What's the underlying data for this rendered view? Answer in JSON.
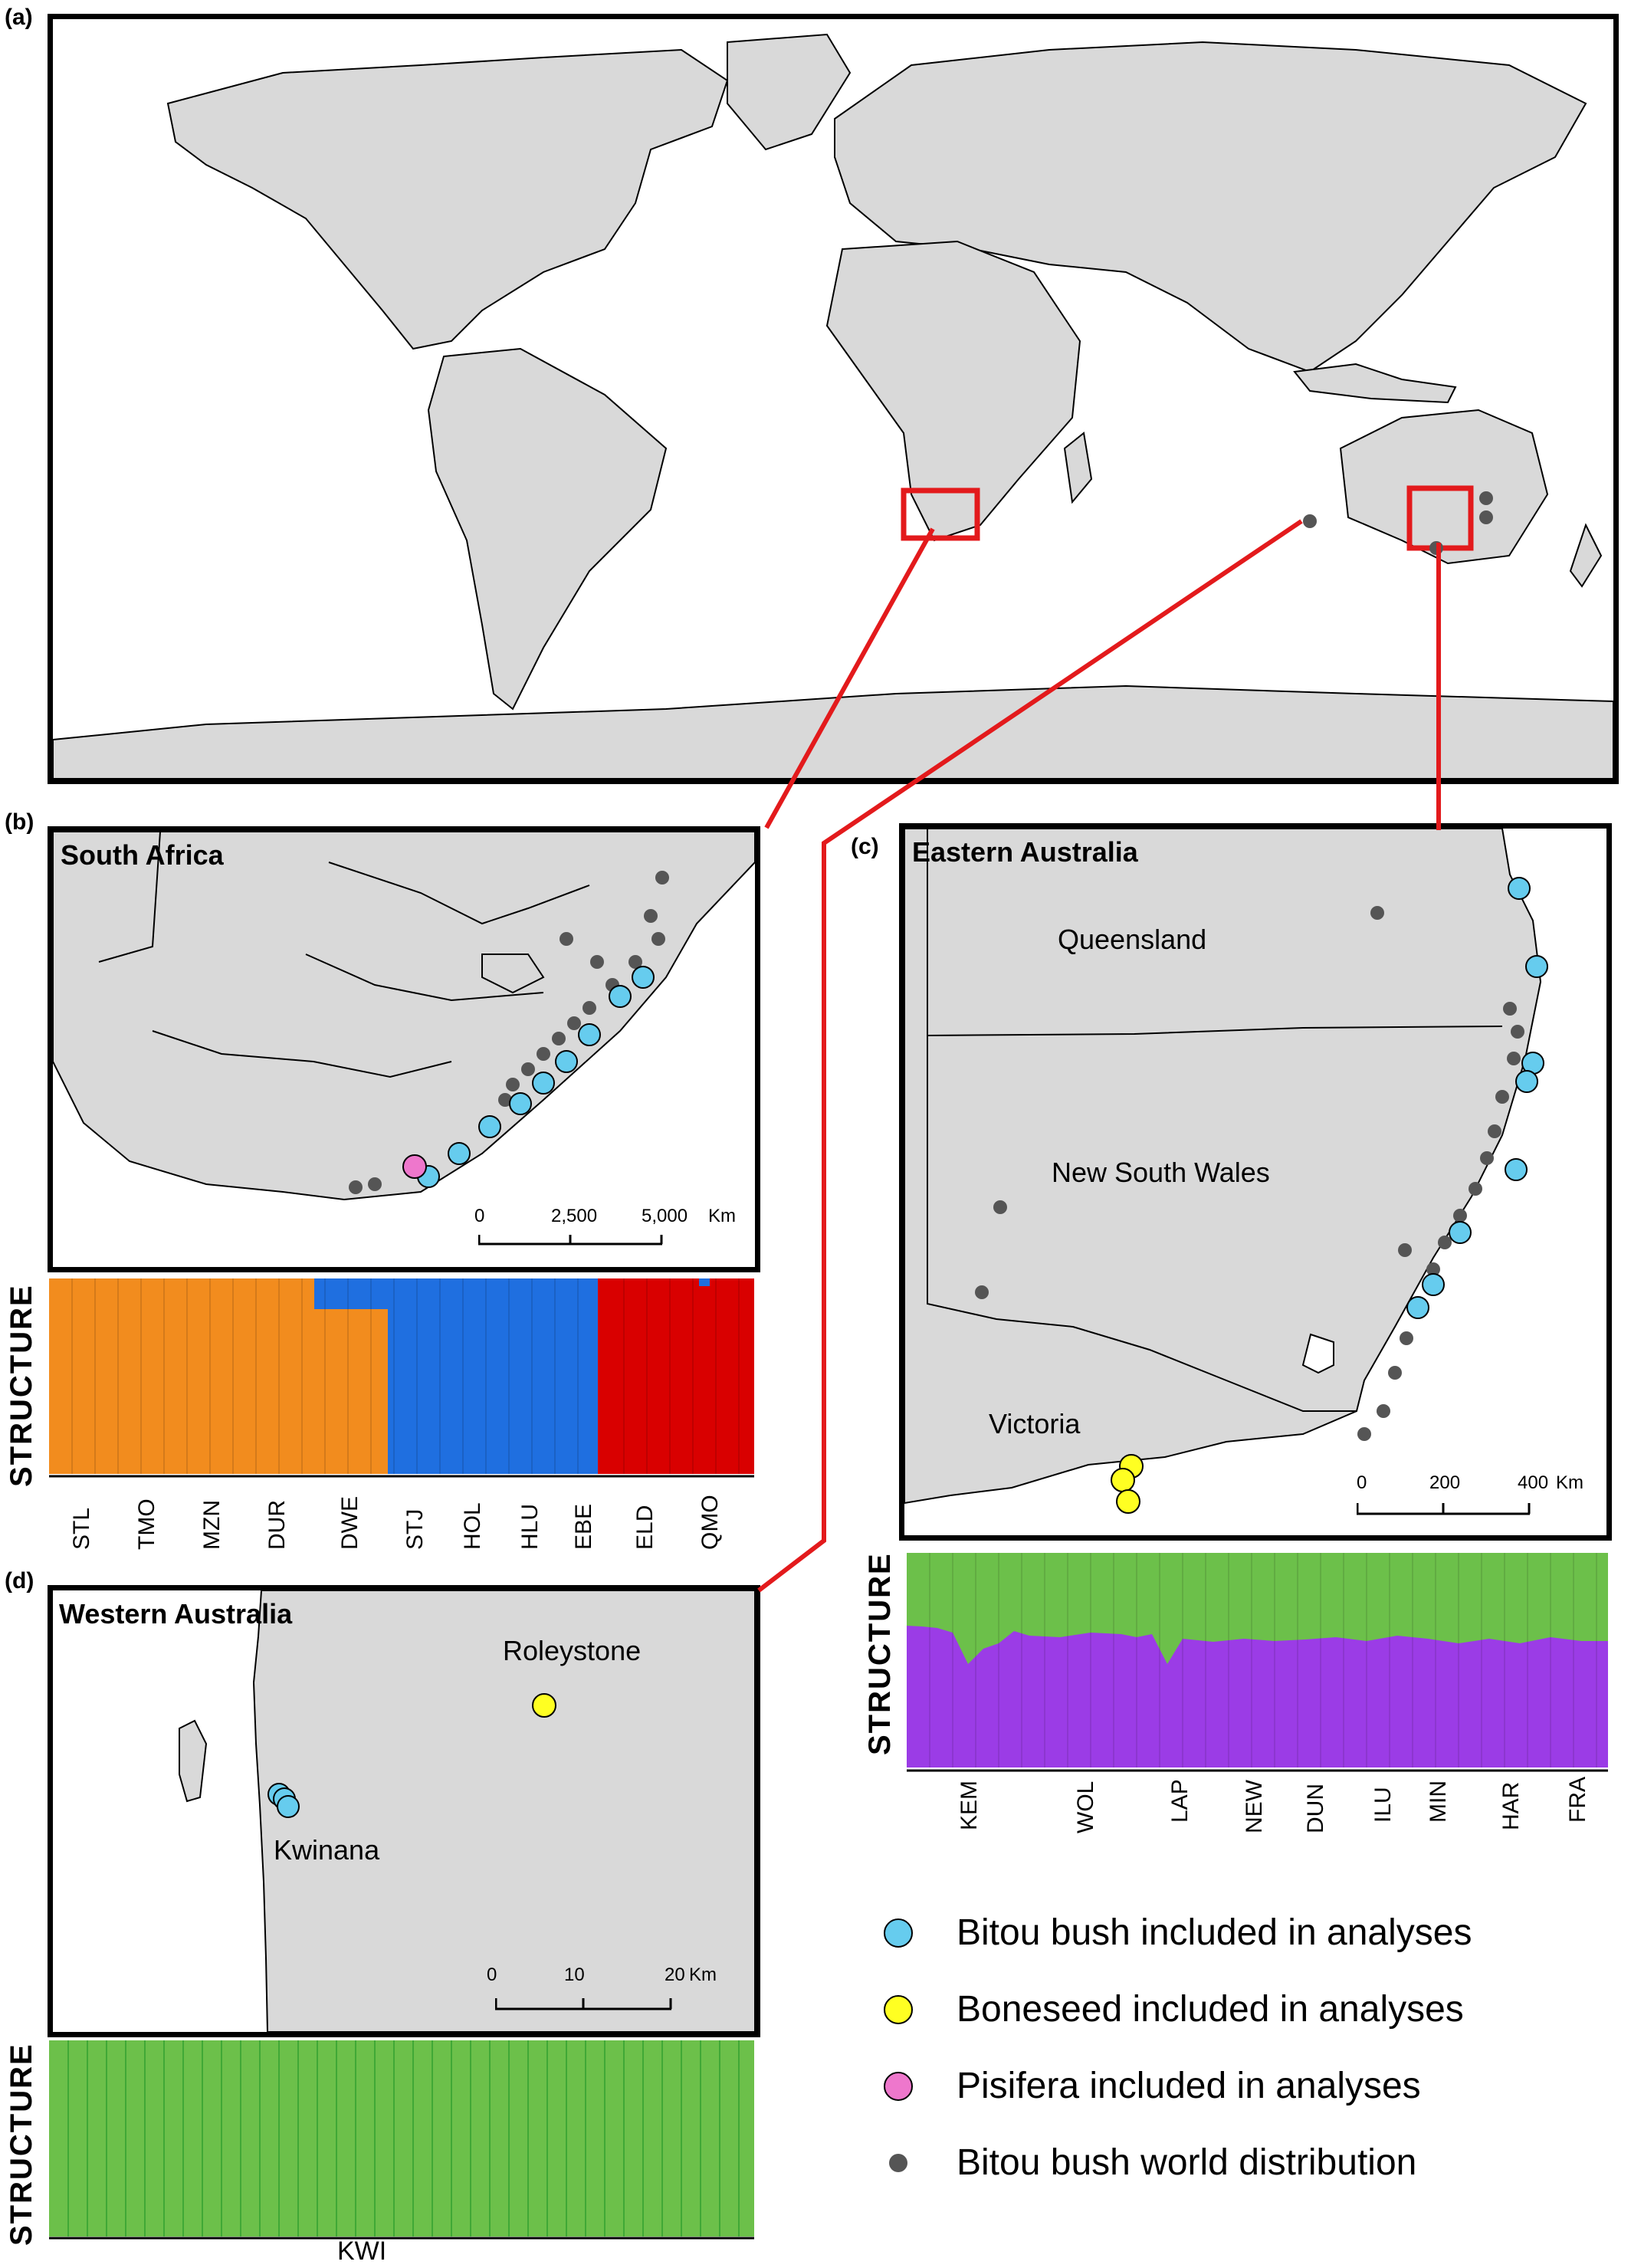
{
  "panels": {
    "a": {
      "letter": "(a)"
    },
    "b": {
      "letter": "(b)",
      "title": "South Africa",
      "scale": {
        "ticks": [
          "0",
          "2,500",
          "5,000"
        ],
        "unit": "Km"
      },
      "structure_label": "STRUCTURE",
      "populations": [
        "STL",
        "TMO",
        "MZN",
        "DUR",
        "DWE",
        "STJ",
        "HOL",
        "HLU",
        "EBE",
        "ELD",
        "QMO"
      ]
    },
    "c": {
      "letter": "(c)",
      "title": "Eastern Australia",
      "regions": [
        "Queensland",
        "New South Wales",
        "Victoria"
      ],
      "scale": {
        "ticks": [
          "0",
          "200",
          "400"
        ],
        "unit": "Km"
      },
      "structure_label": "STRUCTURE",
      "populations": [
        "KEM",
        "WOL",
        "LAP",
        "NEW",
        "DUN",
        "ILU",
        "MIN",
        "HAR",
        "FRA"
      ]
    },
    "d": {
      "letter": "(d)",
      "title": "Western Australia",
      "places": [
        "Roleystone",
        "Kwinana"
      ],
      "scale": {
        "ticks": [
          "0",
          "10",
          "20"
        ],
        "unit": "Km"
      },
      "structure_label": "STRUCTURE",
      "populations": [
        "KWI"
      ]
    }
  },
  "legend": {
    "items": [
      {
        "label": "Bitou bush included in analyses",
        "color": "#66ccee"
      },
      {
        "label": "Boneseed included in analyses",
        "color": "#ffff22"
      },
      {
        "label": "Pisifera included in analyses",
        "color": "#ee77cc"
      },
      {
        "label": "Bitou bush world distribution",
        "color": "#555555"
      }
    ]
  },
  "colors": {
    "land": "#d9d9d9",
    "highlight_box": "#e31a1c",
    "orange_cluster": "#f28c1e",
    "blue_cluster": "#1f6fe0",
    "red_cluster": "#d90000",
    "green_cluster": "#6cc04a",
    "purple_cluster": "#9b3ce6"
  }
}
